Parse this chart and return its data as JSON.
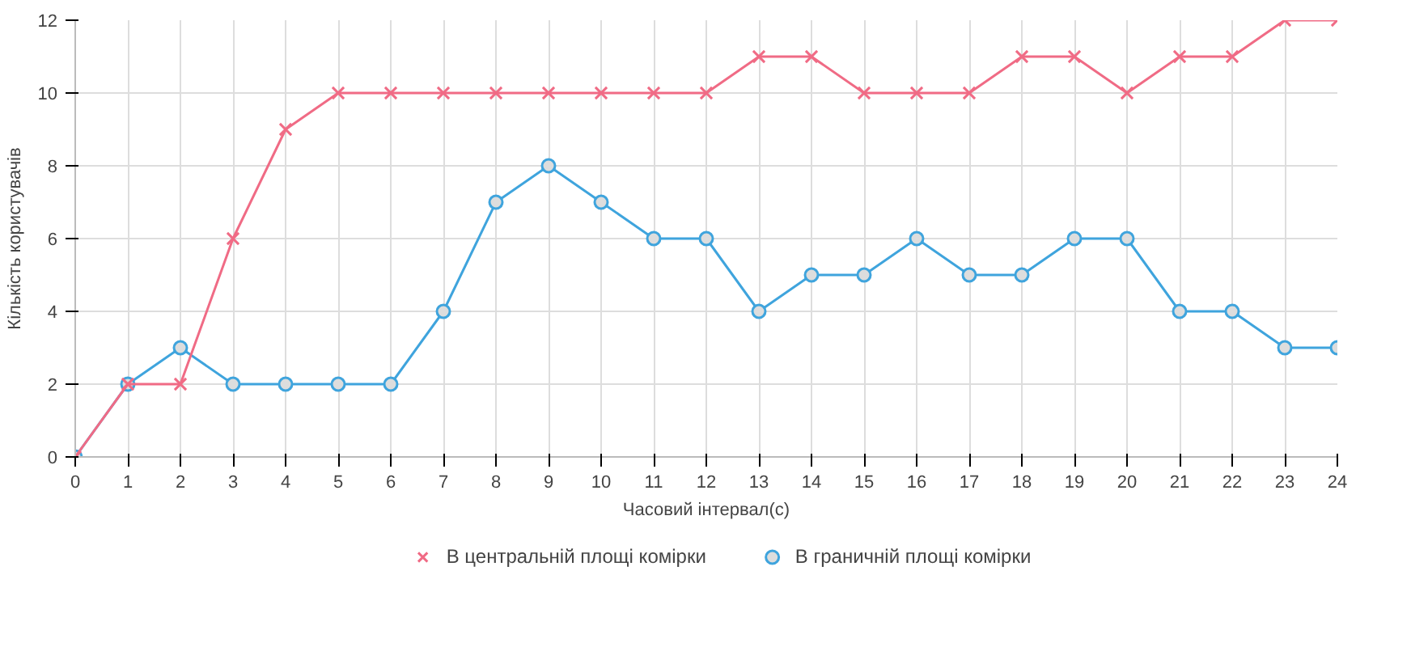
{
  "chart_data": {
    "type": "line",
    "xlabel": "Часовий інтервал(с)",
    "ylabel": "Кількість користувачів",
    "x": [
      0,
      1,
      2,
      3,
      4,
      5,
      6,
      7,
      8,
      9,
      10,
      11,
      12,
      13,
      14,
      15,
      16,
      17,
      18,
      19,
      20,
      21,
      22,
      23,
      24
    ],
    "xlim": [
      0,
      24
    ],
    "xticks": [
      0,
      1,
      2,
      3,
      4,
      5,
      6,
      7,
      8,
      9,
      10,
      11,
      12,
      13,
      14,
      15,
      16,
      17,
      18,
      19,
      20,
      21,
      22,
      23,
      24
    ],
    "ylim": [
      0,
      12
    ],
    "yticks": [
      0,
      2,
      4,
      6,
      8,
      10,
      12
    ],
    "grid": true,
    "legend": "bottom",
    "series": [
      {
        "name": "В центральній площі комірки",
        "color": "#f06b85",
        "marker": "cross",
        "values": [
          0,
          2,
          2,
          6,
          9,
          10,
          10,
          10,
          10,
          10,
          10,
          10,
          10,
          11,
          11,
          10,
          10,
          10,
          11,
          11,
          10,
          11,
          11,
          12,
          12
        ]
      },
      {
        "name": "В граничній площі комірки",
        "color": "#3fa4dd",
        "marker": "circle",
        "values": [
          0,
          2,
          3,
          2,
          2,
          2,
          2,
          4,
          7,
          8,
          7,
          6,
          6,
          4,
          5,
          5,
          6,
          5,
          5,
          6,
          6,
          4,
          4,
          3,
          3
        ]
      }
    ]
  }
}
